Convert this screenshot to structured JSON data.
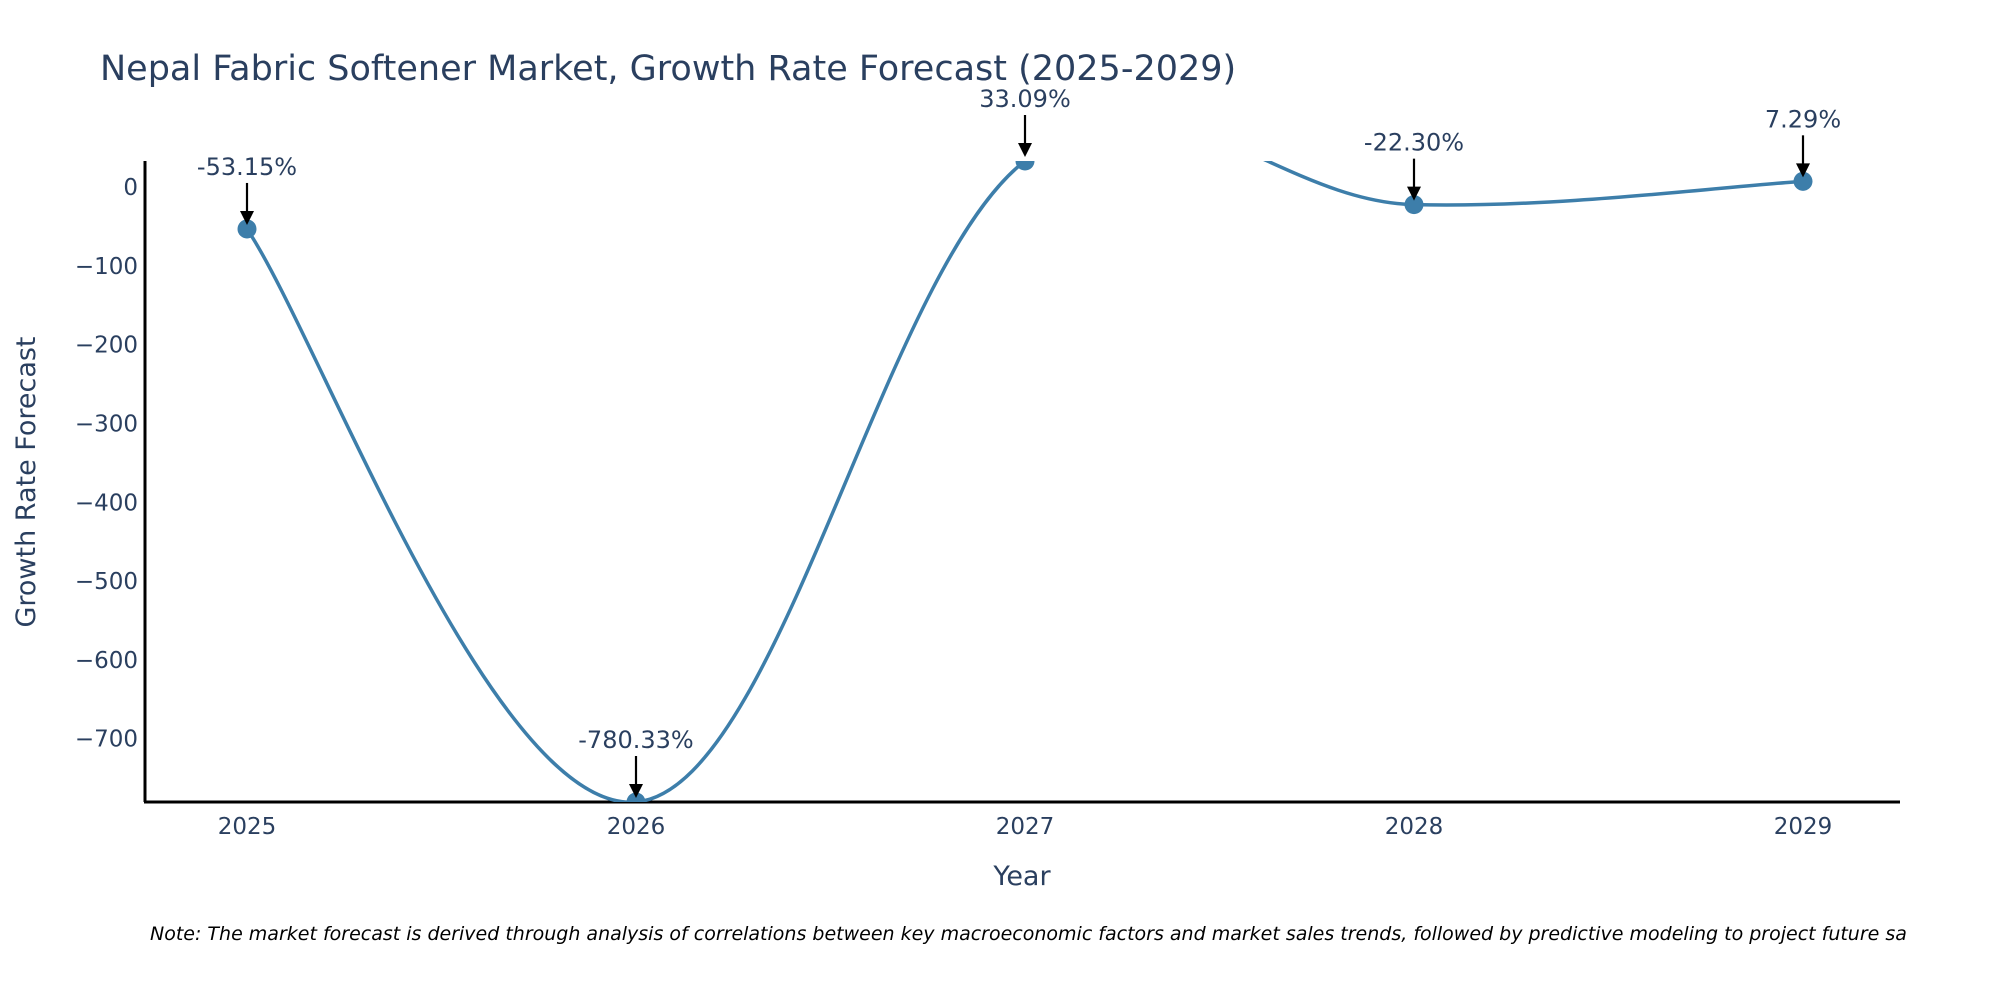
{
  "chart_data": {
    "type": "line",
    "title": "Nepal Fabric Softener Market, Growth Rate Forecast (2025-2029)",
    "xlabel": "Year",
    "ylabel": "Growth Rate Forecast",
    "x": [
      "2025",
      "2026",
      "2027",
      "2028",
      "2029"
    ],
    "series": [
      {
        "name": "Growth Rate Forecast",
        "values": [
          -53.15,
          -780.33,
          33.09,
          -22.3,
          7.29
        ],
        "labels": [
          "-53.15%",
          "-780.33%",
          "33.09%",
          "-22.30%",
          "7.29%"
        ]
      }
    ],
    "ylim": [
      -780.33,
      33.09
    ],
    "yticks": [
      0,
      -100,
      -200,
      -300,
      -400,
      -500,
      -600,
      -700
    ],
    "ytick_labels": [
      "0",
      "−100",
      "−200",
      "−300",
      "−400",
      "−500",
      "−600",
      "−700"
    ],
    "line_color": "#3d7eaa",
    "grid": false,
    "note": "Note: The market forecast is derived through analysis of correlations between key macroeconomic factors and market sales trends, followed by predictive modeling to project future sa"
  }
}
